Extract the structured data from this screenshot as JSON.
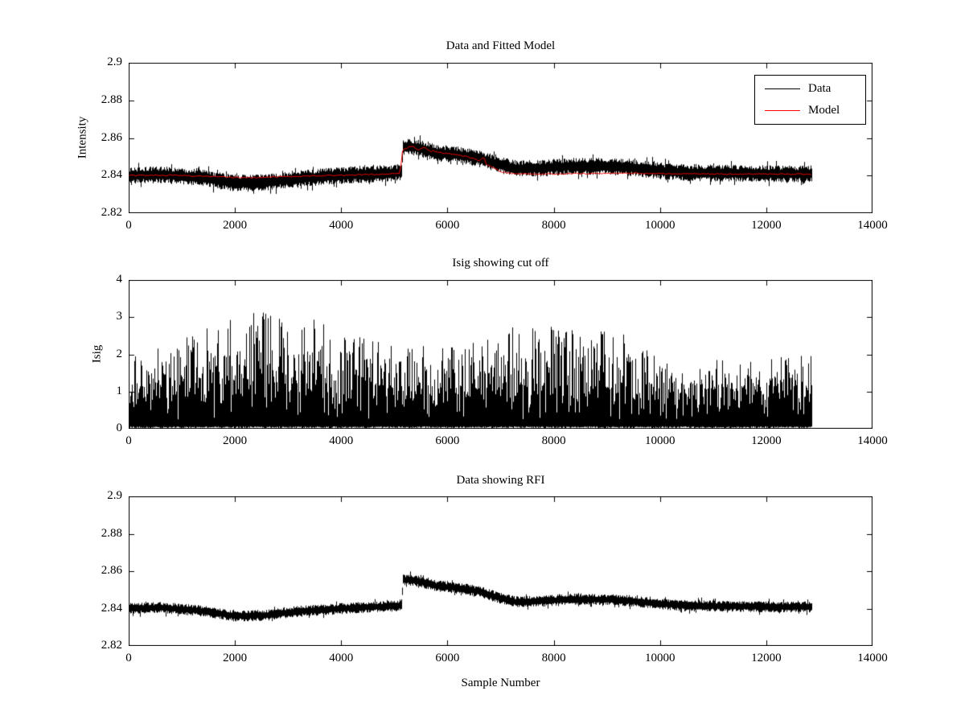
{
  "figure": {
    "background": "#ffffff",
    "axis_color": "#000000",
    "data_color": "#000000",
    "model_color": "#ff0000"
  },
  "chart_data": [
    {
      "type": "line",
      "title": "Data and Fitted Model",
      "xlabel": "",
      "ylabel": "Intensity",
      "xlim": [
        0,
        14000
      ],
      "ylim": [
        2.82,
        2.9
      ],
      "xticks": [
        0,
        2000,
        4000,
        6000,
        8000,
        10000,
        12000,
        14000
      ],
      "xtick_labels": [
        "0",
        "2000",
        "4000",
        "6000",
        "8000",
        "10000",
        "12000",
        "14000"
      ],
      "yticks": [
        2.82,
        2.84,
        2.86,
        2.88,
        2.9
      ],
      "ytick_labels": [
        "2.82",
        "2.84",
        "2.86",
        "2.88",
        "2.9"
      ],
      "x_end": 12850,
      "grid": false,
      "legend": {
        "position": "northeast",
        "entries": [
          {
            "label": "Data",
            "color": "#000000"
          },
          {
            "label": "Model",
            "color": "#ff0000"
          }
        ]
      },
      "series": [
        {
          "name": "Data",
          "color": "#000000",
          "style": "band",
          "noise_amp": 0.0045,
          "trend_x": [
            0,
            600,
            1300,
            2000,
            2600,
            3200,
            4000,
            4700,
            5050,
            5130,
            5160,
            5400,
            5800,
            6200,
            6600,
            7000,
            7300,
            7800,
            8300,
            9000,
            9500,
            10000,
            10500,
            11500,
            12400,
            12850
          ],
          "trend_y": [
            2.84,
            2.8405,
            2.839,
            2.836,
            2.8365,
            2.8385,
            2.84,
            2.841,
            2.8415,
            2.842,
            2.8555,
            2.855,
            2.852,
            2.851,
            2.849,
            2.8455,
            2.8435,
            2.844,
            2.845,
            2.8448,
            2.844,
            2.8425,
            2.8415,
            2.8412,
            2.8408,
            2.841
          ]
        },
        {
          "name": "Model",
          "color": "#ff0000",
          "style": "line",
          "noise_amp": 0.0003,
          "trend_x": [
            0,
            800,
            1600,
            2200,
            3000,
            4000,
            4800,
            5100,
            5150,
            5250,
            5400,
            5600,
            5900,
            6300,
            6600,
            6680,
            6720,
            7000,
            7200,
            7600,
            8500,
            9500,
            10500,
            11500,
            12850
          ],
          "trend_y": [
            2.84,
            2.8402,
            2.8395,
            2.8388,
            2.8395,
            2.8402,
            2.8408,
            2.8412,
            2.854,
            2.8555,
            2.8545,
            2.854,
            2.852,
            2.8505,
            2.848,
            2.85,
            2.846,
            2.842,
            2.841,
            2.8408,
            2.841,
            2.8412,
            2.841,
            2.8408,
            2.8408
          ]
        }
      ]
    },
    {
      "type": "line",
      "title": "Isig showing cut off",
      "xlabel": "",
      "ylabel": "Isig",
      "xlim": [
        0,
        14000
      ],
      "ylim": [
        0,
        4
      ],
      "xticks": [
        0,
        2000,
        4000,
        6000,
        8000,
        10000,
        12000,
        14000
      ],
      "xtick_labels": [
        "0",
        "2000",
        "4000",
        "6000",
        "8000",
        "10000",
        "12000",
        "14000"
      ],
      "yticks": [
        0,
        1,
        2,
        3,
        4
      ],
      "ytick_labels": [
        "0",
        "1",
        "2",
        "3",
        "4"
      ],
      "x_end": 12850,
      "grid": false,
      "series": [
        {
          "name": "Isig",
          "color": "#000000",
          "style": "spikes",
          "env_x": [
            0,
            400,
            900,
            1400,
            1900,
            2300,
            2700,
            3100,
            3600,
            4100,
            4600,
            5100,
            5600,
            6100,
            6600,
            7100,
            7500,
            7900,
            8400,
            8900,
            9400,
            9800,
            10200,
            10600,
            11000,
            11500,
            12000,
            12850
          ],
          "env_y": [
            1.9,
            2.1,
            2.4,
            2.7,
            3.0,
            3.2,
            3.1,
            2.9,
            3.0,
            2.6,
            2.4,
            2.2,
            2.3,
            2.2,
            2.4,
            2.7,
            3.0,
            2.9,
            2.8,
            2.7,
            2.5,
            2.2,
            1.7,
            1.5,
            1.9,
            1.8,
            1.9,
            2.0
          ]
        }
      ]
    },
    {
      "type": "line",
      "title": "Data showing RFI",
      "xlabel": "Sample Number",
      "ylabel": "",
      "xlim": [
        0,
        14000
      ],
      "ylim": [
        2.82,
        2.9
      ],
      "xticks": [
        0,
        2000,
        4000,
        6000,
        8000,
        10000,
        12000,
        14000
      ],
      "xtick_labels": [
        "0",
        "2000",
        "4000",
        "6000",
        "8000",
        "10000",
        "12000",
        "14000"
      ],
      "yticks": [
        2.82,
        2.84,
        2.86,
        2.88,
        2.9
      ],
      "ytick_labels": [
        "2.82",
        "2.84",
        "2.86",
        "2.88",
        "2.9"
      ],
      "x_end": 12850,
      "grid": false,
      "series": [
        {
          "name": "Data",
          "color": "#000000",
          "style": "band",
          "noise_amp": 0.003,
          "trend_x": [
            0,
            600,
            1300,
            2000,
            2600,
            3200,
            4000,
            4700,
            5050,
            5130,
            5160,
            5400,
            5800,
            6200,
            6600,
            7000,
            7300,
            7800,
            8300,
            9000,
            9500,
            10000,
            10500,
            11500,
            12400,
            12850
          ],
          "trend_y": [
            2.84,
            2.8405,
            2.839,
            2.836,
            2.8365,
            2.8385,
            2.84,
            2.841,
            2.8415,
            2.842,
            2.8555,
            2.855,
            2.852,
            2.851,
            2.849,
            2.8455,
            2.8435,
            2.844,
            2.845,
            2.8448,
            2.844,
            2.8425,
            2.8415,
            2.8412,
            2.8408,
            2.841
          ]
        }
      ]
    }
  ]
}
